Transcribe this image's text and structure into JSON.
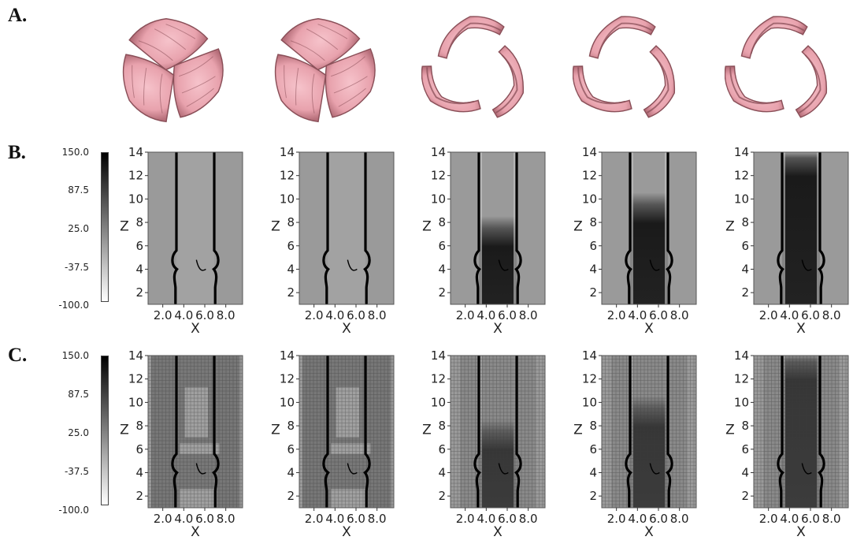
{
  "labels": {
    "a": "A.",
    "b": "B.",
    "c": "C."
  },
  "colorbar_ticks": [
    "150.0",
    "87.5",
    "25.0",
    "-37.5",
    "-100.0"
  ],
  "axis": {
    "xlabel": "X",
    "ylabel": "Z",
    "xticks": [
      "2.0",
      "4.0",
      "6.0",
      "8.0"
    ],
    "yticks": [
      "14",
      "12",
      "10",
      "8",
      "6",
      "4",
      "2"
    ]
  },
  "colors": {
    "leaflet": "#e8a2ad",
    "leaflet_shadow": "#8a4f58",
    "field_bg": "#9a9a9a",
    "wall": "#000000"
  },
  "panels": {
    "count_per_row": 5,
    "jet_extent_z": [
      4,
      4,
      7.5,
      9.5,
      13.5
    ],
    "valve_state": [
      "closed",
      "closed",
      "open",
      "open",
      "open"
    ]
  }
}
